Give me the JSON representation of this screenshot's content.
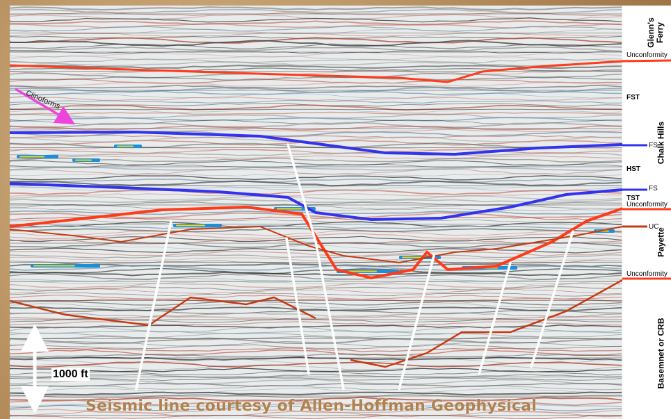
{
  "credit": "Seismic line courtesy of Allen-Hoffman Geophysical",
  "scale_bar": {
    "label": "1000 ft"
  },
  "annotations": {
    "clinoforms": "Clinoforms"
  },
  "formations": {
    "glenns_ferry": "Glenn's\nFerry",
    "chalk_hills": "Chalk Hills",
    "payette": "Payette",
    "basement": "Basemnet or CRB"
  },
  "surfaces": {
    "unconformity_1": "Unconformity",
    "fst": "FST",
    "fs_1": "FS",
    "hst": "HST",
    "fs_2": "FS",
    "tst": "TST",
    "unconformity_2": "Unconformity",
    "uc": "UC",
    "unconformity_3": "Unconformity"
  },
  "colors": {
    "unconformity": "#ff3b1a",
    "flooding_surface": "#3333ee",
    "uc_horizon": "#c43a12",
    "fault": "#ffffff",
    "clinoform_arrow": "#ee44dd",
    "credit_text": "#b08252"
  }
}
